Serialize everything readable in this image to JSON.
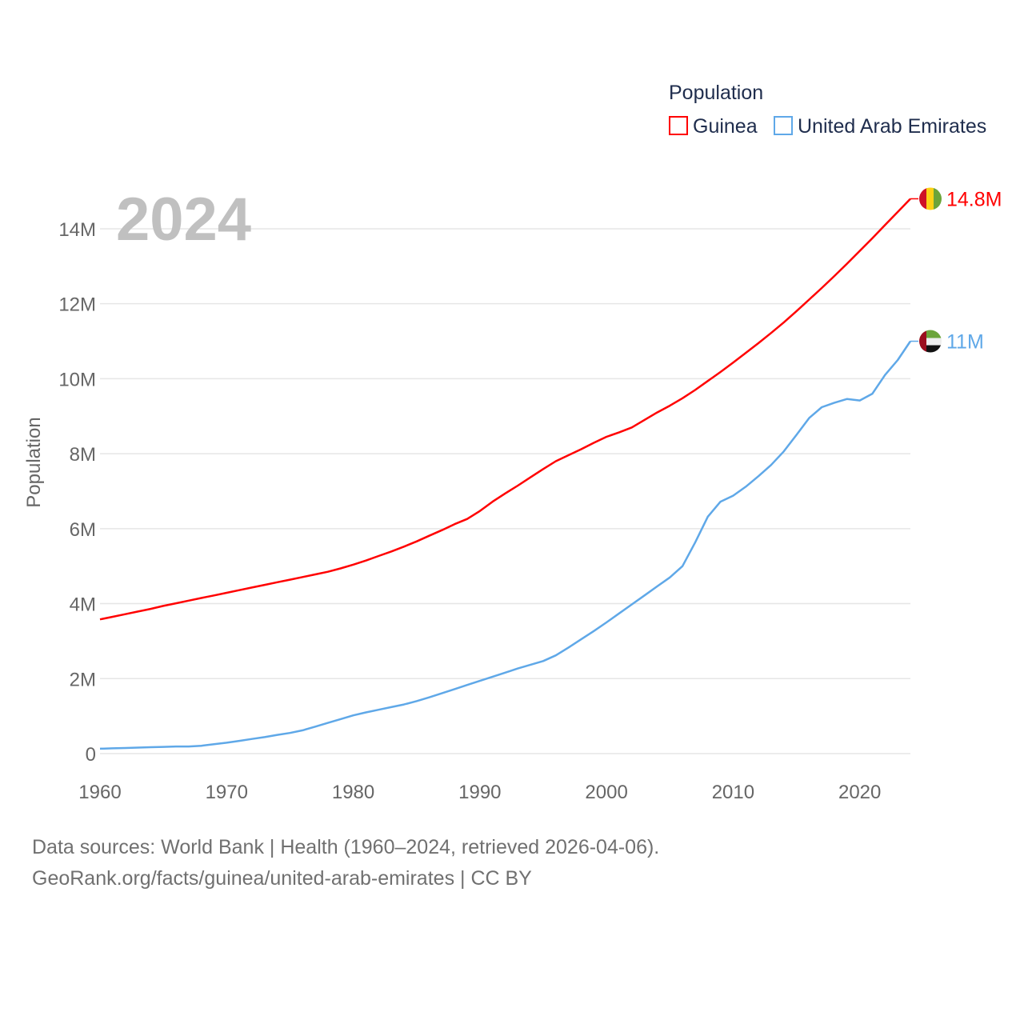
{
  "chart_data": {
    "type": "line",
    "title": "",
    "overlay_year": "2024",
    "xlabel": "",
    "ylabel": "Population",
    "xlim": [
      1960,
      2024
    ],
    "ylim": [
      0,
      14800000
    ],
    "grid": true,
    "x_ticks": [
      1960,
      1970,
      1980,
      1990,
      2000,
      2010,
      2020
    ],
    "x_tick_labels": [
      "1960",
      "1970",
      "1980",
      "1990",
      "2000",
      "2010",
      "2020"
    ],
    "y_ticks": [
      0,
      2000000,
      4000000,
      6000000,
      8000000,
      10000000,
      12000000,
      14000000
    ],
    "y_tick_labels": [
      "0",
      "2M",
      "4M",
      "6M",
      "8M",
      "10M",
      "12M",
      "14M"
    ],
    "legend": {
      "title": "Population",
      "placement": "top-right"
    },
    "x_start": 1960,
    "series": [
      {
        "name": "Guinea",
        "color": "#ff0000",
        "end_label": "14.8M",
        "flag": "guinea-flag",
        "values_millions": [
          3.58,
          3.65,
          3.72,
          3.79,
          3.86,
          3.94,
          4.01,
          4.08,
          4.15,
          4.22,
          4.29,
          4.36,
          4.43,
          4.5,
          4.57,
          4.64,
          4.71,
          4.78,
          4.85,
          4.94,
          5.04,
          5.15,
          5.27,
          5.39,
          5.52,
          5.66,
          5.81,
          5.96,
          6.12,
          6.26,
          6.47,
          6.72,
          6.94,
          7.15,
          7.37,
          7.59,
          7.8,
          7.96,
          8.12,
          8.29,
          8.45,
          8.57,
          8.7,
          8.9,
          9.1,
          9.28,
          9.48,
          9.7,
          9.94,
          10.18,
          10.43,
          10.69,
          10.95,
          11.22,
          11.5,
          11.8,
          12.11,
          12.42,
          12.74,
          13.07,
          13.41,
          13.75,
          14.1,
          14.45,
          14.8
        ]
      },
      {
        "name": "United Arab Emirates",
        "color": "#5fa8e8",
        "end_label": "11M",
        "flag": "uae-flag",
        "values_millions": [
          0.13,
          0.14,
          0.15,
          0.16,
          0.17,
          0.18,
          0.19,
          0.19,
          0.21,
          0.25,
          0.29,
          0.34,
          0.39,
          0.44,
          0.5,
          0.55,
          0.62,
          0.72,
          0.82,
          0.92,
          1.02,
          1.1,
          1.17,
          1.24,
          1.31,
          1.4,
          1.5,
          1.61,
          1.72,
          1.83,
          1.94,
          2.05,
          2.16,
          2.27,
          2.37,
          2.47,
          2.62,
          2.83,
          3.05,
          3.27,
          3.5,
          3.74,
          3.98,
          4.22,
          4.46,
          4.7,
          5.0,
          5.63,
          6.32,
          6.72,
          6.88,
          7.12,
          7.4,
          7.7,
          8.06,
          8.5,
          8.95,
          9.24,
          9.36,
          9.46,
          9.42,
          9.6,
          10.1,
          10.5,
          11.0
        ]
      }
    ]
  },
  "footer": {
    "line1": "Data sources: World Bank | Health (1960–2024, retrieved 2026-04-06).",
    "line2": "GeoRank.org/facts/guinea/united-arab-emirates | CC BY"
  }
}
